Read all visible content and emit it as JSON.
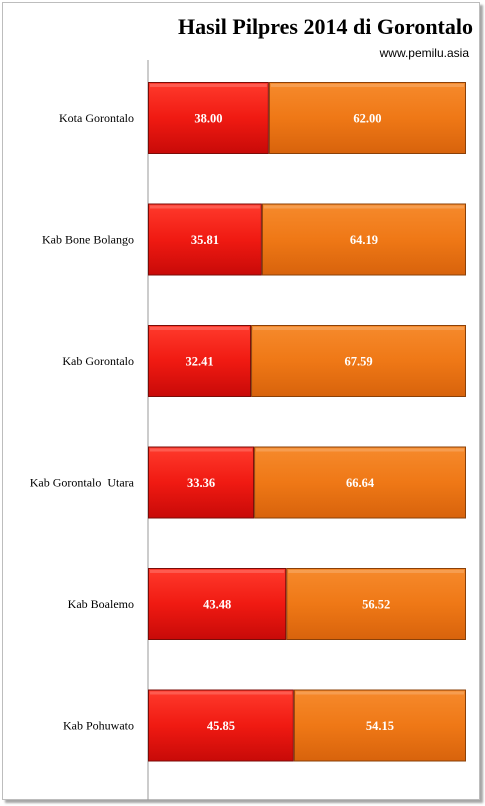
{
  "chart_data": {
    "type": "bar",
    "orientation": "horizontal",
    "stacked": true,
    "title": "Hasil Pilpres 2014 di Gorontalo",
    "source": "www.pemilu.asia",
    "categories": [
      "Kota Gorontalo",
      "Kab Bone Bolango",
      "Kab Gorontalo",
      "Kab Gorontalo  Utara",
      "Kab Boalemo",
      "Kab Pohuwato"
    ],
    "series": [
      {
        "values": [
          38.0,
          35.81,
          32.41,
          33.36,
          43.48,
          45.85
        ],
        "labels": [
          "38.00",
          "35.81",
          "32.41",
          "33.36",
          "43.48",
          "45.85"
        ],
        "color": "#e51414"
      },
      {
        "values": [
          62.0,
          64.19,
          67.59,
          66.64,
          56.52,
          54.15
        ],
        "labels": [
          "62.00",
          "64.19",
          "67.59",
          "66.64",
          "56.52",
          "54.15"
        ],
        "color": "#ed7415"
      }
    ],
    "xlim": [
      0,
      100
    ],
    "grid": false,
    "legend": "none"
  }
}
